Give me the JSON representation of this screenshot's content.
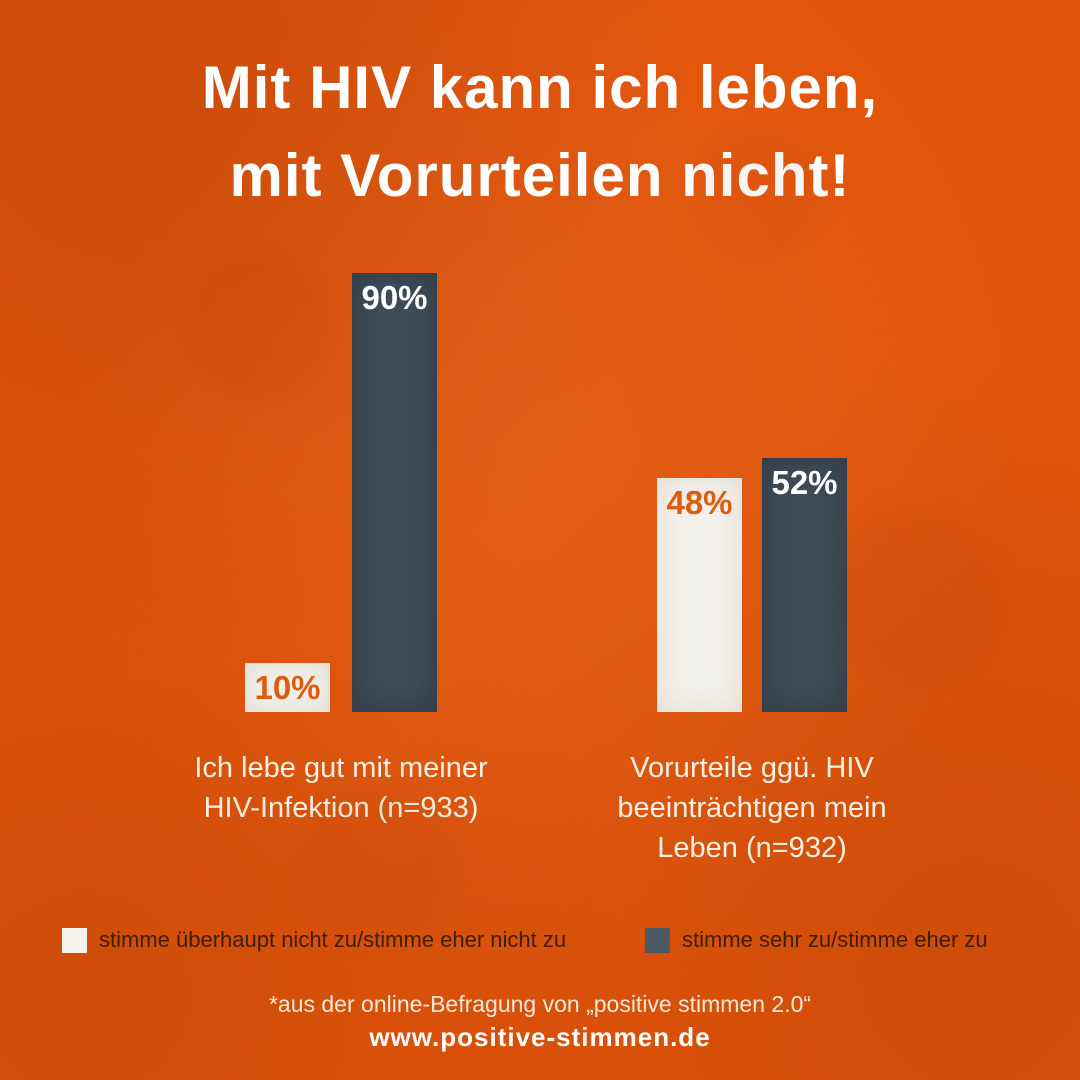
{
  "title": {
    "line1": "Mit HIV kann ich leben,",
    "line2": "mit Vorurteilen nicht!"
  },
  "chart_data": {
    "type": "bar",
    "title": "Mit HIV kann ich leben, mit Vorurteilen nicht!",
    "unit": "%",
    "categories": [
      "Ich lebe gut mit meiner HIV-Infektion (n=933)",
      "Vorurteile ggü. HIV beeinträchtigen mein Leben (n=932)"
    ],
    "series": [
      {
        "name": "stimme überhaupt nicht zu/stimme eher nicht zu",
        "color": "#F3F1EB",
        "values": [
          10,
          48
        ]
      },
      {
        "name": "stimme sehr zu/stimme eher zu",
        "color": "#3E4C57",
        "values": [
          90,
          52
        ]
      }
    ],
    "value_labels": [
      [
        "10%",
        "48%"
      ],
      [
        "90%",
        "52%"
      ]
    ],
    "ylim": [
      0,
      100
    ],
    "grid": false,
    "legend_position": "bottom"
  },
  "bars": {
    "g1_light": "10%",
    "g1_dark": "90%",
    "g2_light": "48%",
    "g2_dark": "52%"
  },
  "groups": [
    {
      "lines": [
        "Ich lebe gut mit meiner",
        "HIV-Infektion (n=933)"
      ]
    },
    {
      "lines": [
        "Vorurteile ggü. HIV",
        "beeinträchtigen mein",
        "Leben (n=932)"
      ]
    }
  ],
  "legend": {
    "item1": "stimme überhaupt nicht zu/stimme eher nicht zu",
    "item2": "stimme sehr zu/stimme eher zu"
  },
  "footer": {
    "source": "*aus der online-Befragung von „positive stimmen 2.0“",
    "website": "www.positive-stimmen.de"
  },
  "colors": {
    "background": "#E2540A",
    "bar_dark": "#3E4C57",
    "bar_light": "#F3F1EB",
    "accent_orange": "#DD5C0F",
    "legend_text": "#3F1D07",
    "category_text": "#F8F0E3",
    "source_text": "#F6E9D8",
    "title_text": "#FFFFFF"
  }
}
